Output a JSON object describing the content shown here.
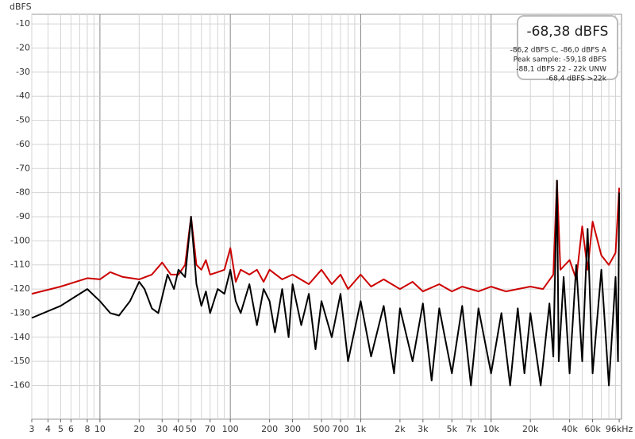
{
  "chart_data": {
    "type": "line",
    "ylabel": "dBFS",
    "log_x": true,
    "grid": true,
    "xlim": [
      3,
      100000
    ],
    "ylim": [
      -174,
      -6
    ],
    "xticks": [
      3,
      4,
      5,
      6,
      8,
      10,
      20,
      30,
      40,
      50,
      70,
      100,
      200,
      300,
      500,
      700,
      {
        "value": 1000,
        "label": "1k"
      },
      {
        "value": 2000,
        "label": "2k"
      },
      {
        "value": 3000,
        "label": "3k"
      },
      {
        "value": 5000,
        "label": "5k"
      },
      {
        "value": 7000,
        "label": "7k"
      },
      {
        "value": 10000,
        "label": "10k"
      },
      {
        "value": 20000,
        "label": "20k"
      },
      {
        "value": 40000,
        "label": "40k"
      },
      {
        "value": 60000,
        "label": "60k"
      },
      {
        "value": 96000,
        "label": "96kHz"
      }
    ],
    "yticks": [
      -10,
      -20,
      -30,
      -40,
      -50,
      -60,
      -70,
      -80,
      -90,
      -100,
      -110,
      -120,
      -130,
      -140,
      -150,
      -160
    ],
    "info_box": {
      "main": "-68,38 dBFS",
      "lines": [
        "-86,2 dBFS C, -86,0 dBFS A",
        "Peak sample: -59,18 dBFS",
        "-88,1 dBFS 22 - 22k UNW",
        "-68,4 dBFS >22k"
      ]
    },
    "series": [
      {
        "color": "#cc0000",
        "x": [
          3,
          5,
          8,
          10,
          12,
          15,
          20,
          25,
          30,
          35,
          40,
          45,
          50,
          55,
          60,
          65,
          70,
          80,
          90,
          100,
          110,
          120,
          140,
          160,
          180,
          200,
          250,
          300,
          400,
          500,
          600,
          700,
          800,
          1000,
          1200,
          1500,
          2000,
          2500,
          3000,
          4000,
          5000,
          6000,
          8000,
          10000,
          13000,
          16000,
          20000,
          25000,
          30000,
          32000,
          34000,
          40000,
          45000,
          50000,
          55000,
          60000,
          70000,
          80000,
          90000,
          96000
        ],
        "values": [
          -122,
          -119,
          -115.5,
          -116,
          -113,
          -115,
          -116,
          -114,
          -109,
          -114,
          -114,
          -110,
          -90,
          -110,
          -112,
          -108,
          -114,
          -113,
          -112,
          -103,
          -117,
          -112,
          -114,
          -112,
          -117,
          -112,
          -116,
          -114,
          -118,
          -112,
          -118,
          -114,
          -120,
          -114,
          -119,
          -116,
          -120,
          -117,
          -121,
          -118,
          -121,
          -119,
          -121,
          -119,
          -121,
          -120,
          -119,
          -120,
          -114,
          -75,
          -112,
          -108,
          -116,
          -94,
          -112,
          -92,
          -106,
          -110,
          -105,
          -78
        ]
      },
      {
        "color": "#000000",
        "x": [
          3,
          5,
          7,
          8,
          10,
          12,
          14,
          17,
          20,
          22,
          25,
          28,
          33,
          37,
          40,
          45,
          50,
          55,
          60,
          65,
          70,
          80,
          90,
          100,
          110,
          120,
          140,
          160,
          180,
          200,
          220,
          250,
          280,
          300,
          350,
          400,
          450,
          500,
          600,
          700,
          800,
          1000,
          1200,
          1500,
          1800,
          2000,
          2500,
          3000,
          3500,
          4000,
          5000,
          6000,
          7000,
          8000,
          10000,
          12000,
          14000,
          16000,
          18000,
          20000,
          24000,
          28000,
          30000,
          32000,
          33000,
          36000,
          40000,
          45000,
          50000,
          55000,
          60000,
          70000,
          80000,
          90000,
          94000,
          96000
        ],
        "values": [
          -132,
          -127,
          -122,
          -120,
          -125,
          -130,
          -131,
          -125,
          -117,
          -120,
          -128,
          -130,
          -114,
          -120,
          -112,
          -115,
          -90,
          -118,
          -127,
          -121,
          -130,
          -120,
          -122,
          -112,
          -125,
          -130,
          -118,
          -135,
          -120,
          -125,
          -138,
          -120,
          -140,
          -118,
          -135,
          -122,
          -145,
          -125,
          -140,
          -122,
          -150,
          -125,
          -148,
          -127,
          -155,
          -128,
          -150,
          -126,
          -158,
          -128,
          -155,
          -127,
          -160,
          -128,
          -155,
          -130,
          -160,
          -128,
          -155,
          -130,
          -160,
          -126,
          -148,
          -75,
          -150,
          -115,
          -155,
          -110,
          -150,
          -95,
          -155,
          -112,
          -160,
          -115,
          -150,
          -80
        ]
      }
    ]
  }
}
